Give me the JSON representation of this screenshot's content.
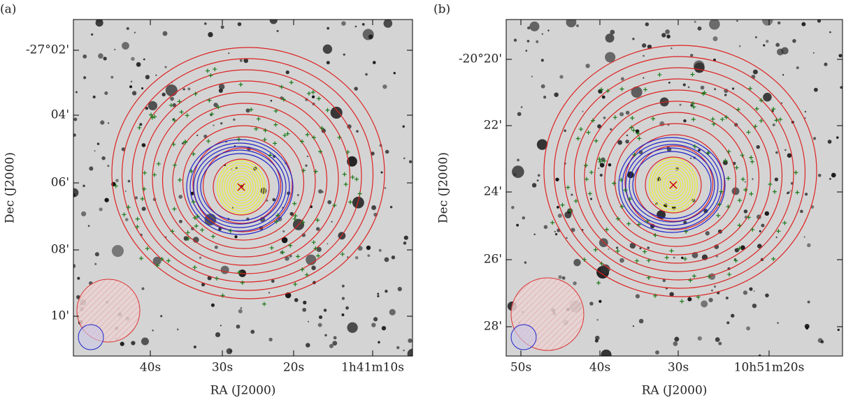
{
  "panels": [
    {
      "label": "(a)",
      "x_axis": {
        "title": "RA (J2000)",
        "ticks": [
          "40s",
          "30s",
          "20s",
          "1h41m10s"
        ]
      },
      "y_axis": {
        "title": "Dec (J2000)",
        "ticks": [
          "-27°02'",
          "04'",
          "06'",
          "08'",
          "10'"
        ]
      }
    },
    {
      "label": "(b)",
      "x_axis": {
        "title": "RA (J2000)",
        "ticks": [
          "50s",
          "40s",
          "30s",
          "10h51m20s"
        ]
      },
      "y_axis": {
        "title": "Dec (J2000)",
        "ticks": [
          "-20°20'",
          "22'",
          "24'",
          "26'",
          "28'"
        ]
      }
    }
  ]
}
